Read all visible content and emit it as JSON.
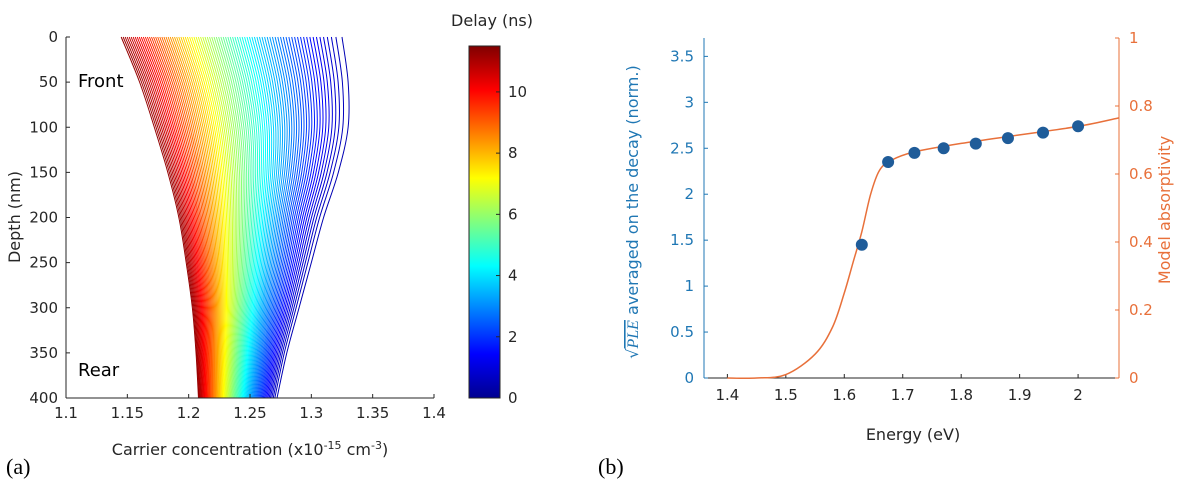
{
  "panel_labels": {
    "a": "(a)",
    "b": "(b)"
  },
  "colors": {
    "left_axis_b": "#1f77b4",
    "right_axis_b": "#e8703a",
    "points": "#1f5c99",
    "model_line": "#e8703a",
    "axis_black": "#262626"
  },
  "chart_data": [
    {
      "type": "line",
      "panel": "(a)",
      "xlabel": "Carrier concentration (x10",
      "xlabel_sup1": "-15",
      "xlabel_mid": " cm",
      "xlabel_sup2": "-3",
      "xlabel_end": ")",
      "ylabel": "Depth (nm)",
      "xlim": [
        1.1,
        1.4
      ],
      "ylim": [
        0,
        400
      ],
      "y_reversed": true,
      "xticks": [
        "1.1",
        "1.15",
        "1.2",
        "1.25",
        "1.3",
        "1.35",
        "1.4"
      ],
      "yticks": [
        "0",
        "50",
        "100",
        "150",
        "200",
        "250",
        "300",
        "350",
        "400"
      ],
      "annotations": {
        "front": "Front",
        "rear": "Rear"
      },
      "colorbar": {
        "title": "Delay (ns)",
        "range": [
          0,
          11.5
        ],
        "ticks": [
          "0",
          "2",
          "4",
          "6",
          "8",
          "10"
        ],
        "colormap": "jet"
      },
      "series_family": {
        "description_count": 90,
        "delay_range_ns": [
          0,
          11.5
        ],
        "depth_nm": [
          0,
          50,
          100,
          150,
          200,
          250,
          300,
          350,
          400
        ],
        "first_curve_conc": [
          1.325,
          1.33,
          1.33,
          1.322,
          1.31,
          1.3,
          1.29,
          1.28,
          1.272
        ],
        "last_curve_conc": [
          1.145,
          1.16,
          1.172,
          1.183,
          1.192,
          1.198,
          1.203,
          1.206,
          1.208
        ]
      }
    },
    {
      "type": "scatter",
      "panel": "(b)",
      "xlabel": "Energy (eV)",
      "ylabel_left_prefix": "√",
      "ylabel_left_overline": "PLE",
      "ylabel_left": " averaged on the decay (norm.)",
      "ylabel_right": "Model absorptivity",
      "xlim": [
        1.36,
        2.07
      ],
      "ylim_left": [
        0,
        3.7
      ],
      "ylim_right": [
        0,
        1
      ],
      "xticks": [
        "1.4",
        "1.5",
        "1.6",
        "1.7",
        "1.8",
        "1.9",
        "2"
      ],
      "yticks_left": [
        "0",
        "0.5",
        "1",
        "1.5",
        "2",
        "2.5",
        "3",
        "3.5"
      ],
      "yticks_right": [
        "0",
        "0.2",
        "0.4",
        "0.6",
        "0.8",
        "1"
      ],
      "series": [
        {
          "axis": "left",
          "x": [
            1.63,
            1.675,
            1.72,
            1.77,
            1.825,
            1.88,
            1.94,
            2.0
          ],
          "y": [
            1.45,
            2.35,
            2.45,
            2.5,
            2.55,
            2.61,
            2.67,
            2.74
          ]
        },
        {
          "axis": "right",
          "x": [
            1.4,
            1.45,
            1.5,
            1.55,
            1.58,
            1.6,
            1.615,
            1.63,
            1.645,
            1.66,
            1.68,
            1.72,
            1.8,
            1.9,
            2.0,
            2.07
          ],
          "y": [
            0.0,
            0.0,
            0.01,
            0.07,
            0.15,
            0.25,
            0.34,
            0.43,
            0.54,
            0.61,
            0.64,
            0.665,
            0.69,
            0.715,
            0.74,
            0.765
          ]
        }
      ]
    }
  ]
}
